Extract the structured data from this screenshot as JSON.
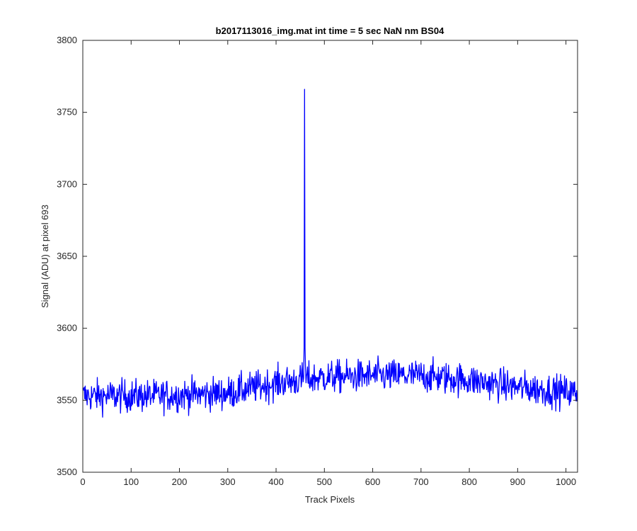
{
  "chart_data": {
    "type": "line",
    "title": "b2017113016_img.mat int time = 5 sec  NaN nm BS04",
    "xlabel": "Track Pixels",
    "ylabel": "Signal (ADU) at pixel 693",
    "xlim": [
      0,
      1024
    ],
    "ylim": [
      3500,
      3800
    ],
    "xticks": [
      0,
      100,
      200,
      300,
      400,
      500,
      600,
      700,
      800,
      900,
      1000
    ],
    "yticks": [
      3500,
      3550,
      3600,
      3650,
      3700,
      3750,
      3800
    ],
    "grid": false,
    "legend": "none",
    "series": [
      {
        "color": "#0000ff",
        "baseline": [
          [
            0,
            3553
          ],
          [
            150,
            3553
          ],
          [
            300,
            3555
          ],
          [
            400,
            3562
          ],
          [
            500,
            3566
          ],
          [
            600,
            3567
          ],
          [
            700,
            3567
          ],
          [
            800,
            3564
          ],
          [
            900,
            3559
          ],
          [
            1024,
            3555
          ]
        ],
        "noise_amplitude": 9,
        "spike": {
          "x": 459,
          "y": 3766
        },
        "x_points": 1024
      }
    ]
  },
  "colors": {
    "line": "#0000ff",
    "axis": "#262626",
    "background": "#ffffff"
  }
}
